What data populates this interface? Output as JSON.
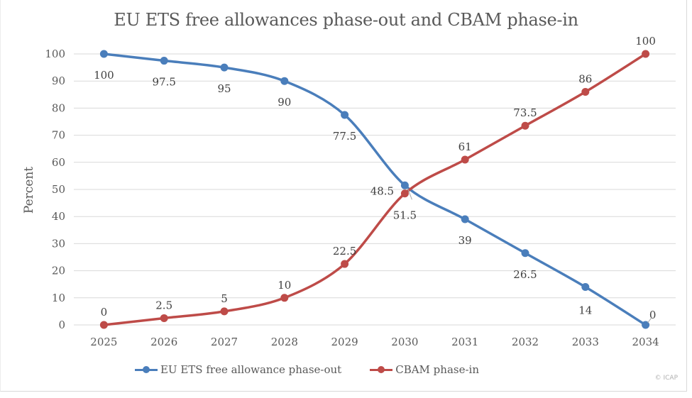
{
  "chart_data": {
    "type": "line",
    "title": "EU ETS free allowances phase-out and CBAM phase-in",
    "xlabel": "",
    "ylabel": "Percent",
    "ylim": [
      0,
      100
    ],
    "yticks": [
      0,
      10,
      20,
      30,
      40,
      50,
      60,
      70,
      80,
      90,
      100
    ],
    "grid": true,
    "legend_position": "bottom",
    "x": [
      "2025",
      "2026",
      "2027",
      "2028",
      "2029",
      "2030",
      "2031",
      "2032",
      "2033",
      "2034"
    ],
    "series": [
      {
        "name": "EU ETS free allowance phase-out",
        "color": "#4a7ebb",
        "values": [
          100,
          97.5,
          95,
          90,
          77.5,
          51.5,
          39,
          26.5,
          14,
          0
        ],
        "labels": [
          "100",
          "97.5",
          "95",
          "90",
          "77.5",
          "51.5",
          "39",
          "26.5",
          "14",
          "0"
        ]
      },
      {
        "name": "CBAM phase-in",
        "color": "#be4b48",
        "values": [
          0,
          2.5,
          5,
          10,
          22.5,
          48.5,
          61,
          73.5,
          86,
          100
        ],
        "labels": [
          "0",
          "2.5",
          "5",
          "10",
          "22.5",
          "48.5",
          "61",
          "73.5",
          "86",
          "100"
        ]
      }
    ]
  },
  "copyright": "© ICAP"
}
